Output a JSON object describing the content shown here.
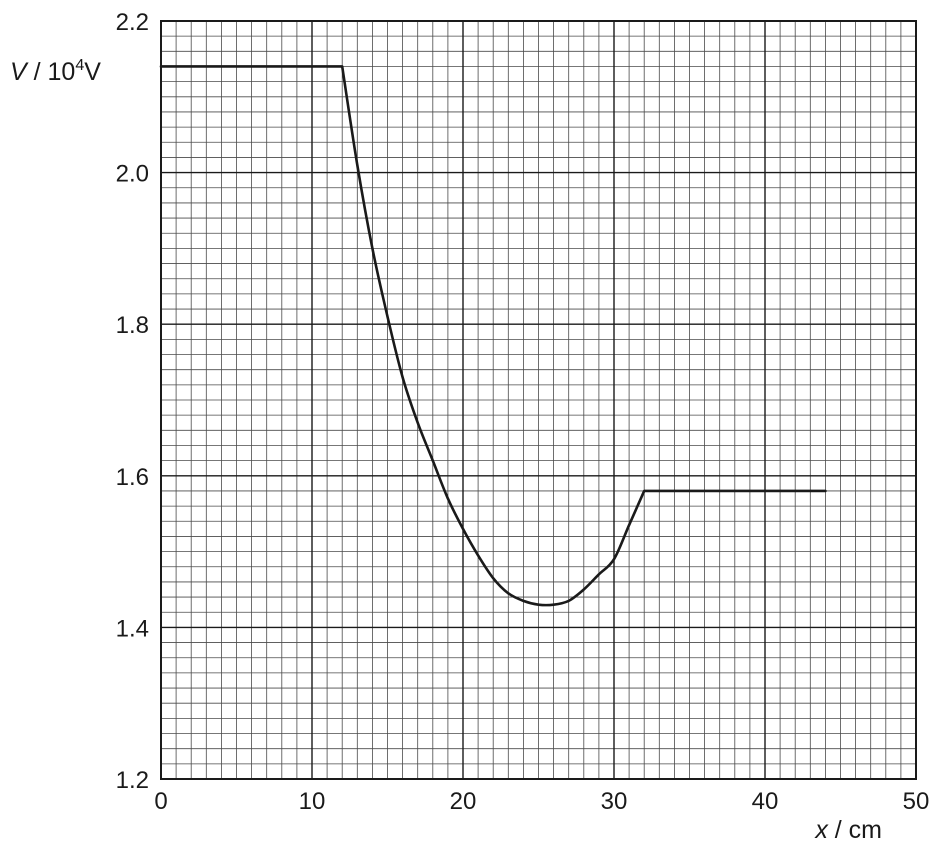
{
  "chart_data": {
    "type": "line",
    "ylabel": {
      "var": "V",
      "sep": " / ",
      "base": "10",
      "exp": "4",
      "unit": "V"
    },
    "xlabel": {
      "var": "x",
      "sep": " / ",
      "unit": "cm"
    },
    "xlim": [
      0,
      50
    ],
    "ylim": [
      1.2,
      2.2
    ],
    "x_ticks": [
      "0",
      "10",
      "20",
      "30",
      "40",
      "50"
    ],
    "y_ticks": [
      "1.2",
      "1.4",
      "1.6",
      "1.8",
      "2.0",
      "2.2"
    ],
    "grid": {
      "major_x": 10,
      "major_y": 0.2,
      "minor_x": 1,
      "minor_y": 0.02
    },
    "colors": {
      "line": "#1a1a1a",
      "grid_minor": "#4a4a4a",
      "grid_major": "#1a1a1a"
    },
    "series": [
      {
        "x": [
          0,
          12,
          13,
          14,
          15,
          16,
          17,
          18,
          19,
          20,
          21,
          22,
          23,
          24,
          25,
          26,
          27,
          28,
          29,
          30,
          31,
          32,
          44
        ],
        "y": [
          2.14,
          2.14,
          2.01,
          1.9,
          1.81,
          1.73,
          1.67,
          1.62,
          1.57,
          1.53,
          1.495,
          1.465,
          1.445,
          1.435,
          1.43,
          1.43,
          1.435,
          1.45,
          1.47,
          1.49,
          1.535,
          1.58,
          1.58
        ]
      }
    ]
  }
}
